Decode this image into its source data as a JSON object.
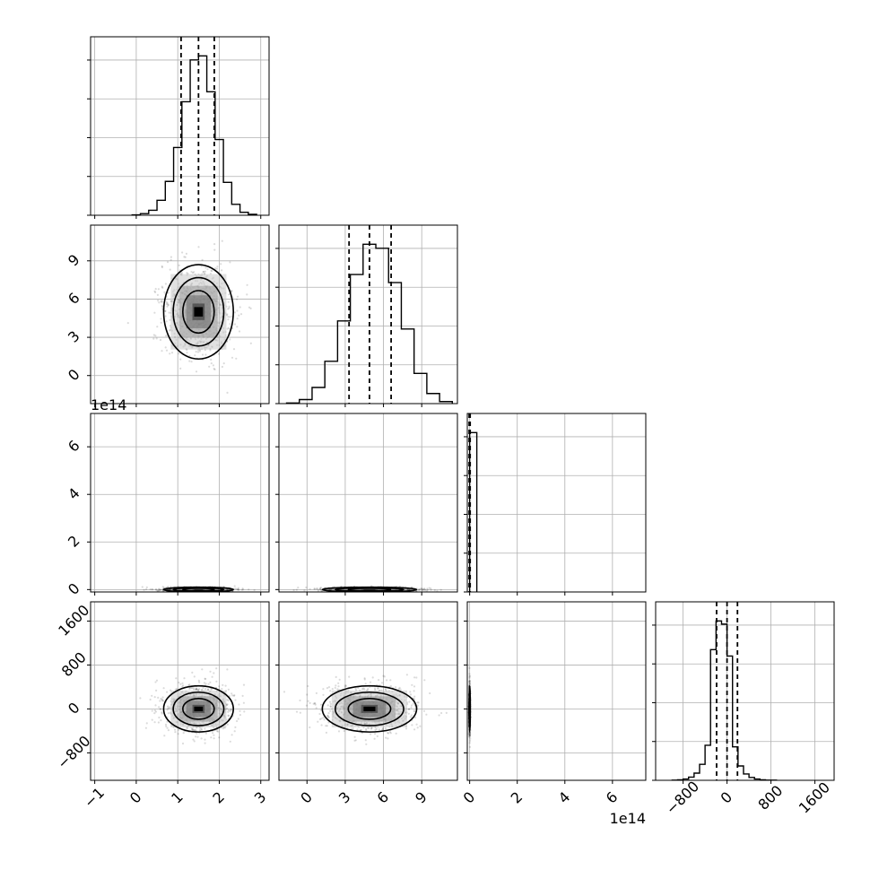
{
  "chart_data": {
    "type": "corner",
    "title": "",
    "parameters": [
      {
        "range": [
          -1.1,
          3.2
        ],
        "ticks": [
          -1,
          0,
          1,
          2,
          3
        ],
        "tick_labels": [
          "−1",
          "0",
          "1",
          "2",
          "3"
        ],
        "quantiles": [
          1.08,
          1.5,
          1.88
        ],
        "offset_label": ""
      },
      {
        "range": [
          -2.2,
          11.8
        ],
        "ticks": [
          0,
          3,
          6,
          9
        ],
        "tick_labels": [
          "0",
          "3",
          "6",
          "9"
        ],
        "quantiles": [
          3.3,
          4.9,
          6.6
        ],
        "offset_label": ""
      },
      {
        "range": [
          -0.1,
          7.4
        ],
        "ticks": [
          0,
          2,
          4,
          6
        ],
        "tick_labels": [
          "0",
          "2",
          "4",
          "6"
        ],
        "quantiles": [
          -0.02,
          0.0,
          0.02
        ],
        "offset_label": "1e14"
      },
      {
        "range": [
          -1300,
          1950
        ],
        "ticks": [
          -800,
          0,
          800,
          1600
        ],
        "tick_labels": [
          "−800",
          "0",
          "800",
          "1600"
        ],
        "quantiles": [
          -190,
          0,
          190
        ],
        "offset_label": ""
      }
    ],
    "histograms": [
      {
        "bin_edges": [
          -0.1,
          0.1,
          0.3,
          0.5,
          0.7,
          0.9,
          1.1,
          1.3,
          1.5,
          1.7,
          1.9,
          2.1,
          2.3,
          2.5,
          2.7,
          2.9
        ],
        "counts": [
          2,
          8,
          25,
          75,
          170,
          340,
          570,
          780,
          800,
          620,
          380,
          165,
          55,
          15,
          5
        ]
      },
      {
        "bin_edges": [
          -1.6,
          -0.6,
          0.4,
          1.4,
          2.4,
          3.4,
          4.4,
          5.4,
          6.4,
          7.4,
          8.4,
          9.4,
          10.4,
          11.4
        ],
        "counts": [
          3,
          20,
          80,
          210,
          410,
          640,
          790,
          770,
          600,
          370,
          150,
          50,
          10
        ]
      },
      {
        "bin_edges": [
          0.0,
          0.3
        ],
        "counts": [
          1000
        ]
      },
      {
        "bin_edges": [
          -1000,
          -900,
          -800,
          -700,
          -600,
          -500,
          -400,
          -300,
          -200,
          -100,
          0,
          100,
          200,
          300,
          400,
          500,
          600,
          700,
          800,
          900
        ],
        "counts": [
          1,
          3,
          8,
          20,
          45,
          100,
          220,
          820,
          1000,
          980,
          780,
          210,
          90,
          40,
          18,
          8,
          3,
          1,
          1
        ]
      }
    ],
    "pairs": [
      {
        "row": 1,
        "col": 0,
        "center": [
          1.5,
          5.0
        ],
        "sigma": [
          0.42,
          1.85
        ]
      },
      {
        "row": 2,
        "col": 0,
        "center": [
          1.5,
          0.0
        ],
        "sigma": [
          0.42,
          0.05
        ]
      },
      {
        "row": 2,
        "col": 1,
        "center": [
          4.9,
          0.0
        ],
        "sigma": [
          1.85,
          0.05
        ]
      },
      {
        "row": 3,
        "col": 0,
        "center": [
          1.5,
          0.0
        ],
        "sigma": [
          0.42,
          210
        ]
      },
      {
        "row": 3,
        "col": 1,
        "center": [
          4.9,
          0.0
        ],
        "sigma": [
          1.85,
          210
        ]
      },
      {
        "row": 3,
        "col": 2,
        "center": [
          0.0,
          0.0
        ],
        "sigma": [
          0.012,
          210
        ]
      }
    ]
  }
}
